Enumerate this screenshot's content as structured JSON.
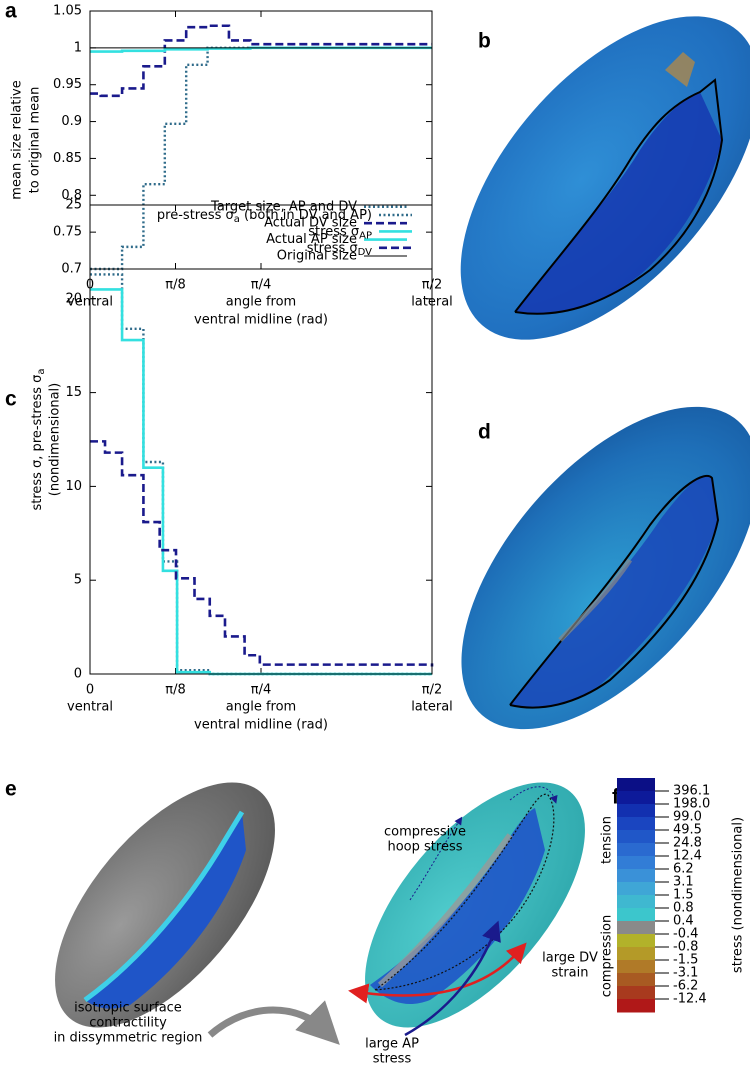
{
  "panel_labels": [
    "a",
    "b",
    "c",
    "d",
    "e",
    "f"
  ],
  "chart_data": [
    {
      "type": "line",
      "step": true,
      "legend": "lower right",
      "ylabel": [
        "mean size relative",
        "to original mean"
      ],
      "xlabel": [
        "angle from",
        "ventral midline (rad)"
      ],
      "x_end_labels": [
        "ventral",
        "lateral"
      ],
      "xlim": [
        0,
        1.5708
      ],
      "xticks": [
        0,
        {
          "value": 0.3927,
          "label": "π/8"
        },
        {
          "value": 0.7854,
          "label": "π/4"
        },
        {
          "value": 1.5708,
          "label": "π/2"
        }
      ],
      "ylim": [
        0.7,
        1.05
      ],
      "yticks": [
        0.7,
        0.75,
        0.8,
        0.85,
        0.9,
        0.95,
        1,
        1.05
      ],
      "series": [
        {
          "name": "Target size, AP and DV",
          "color": "#2f6b8a",
          "dash": "dotted",
          "x": [
            0,
            0.1473,
            0.2454,
            0.3436,
            0.4418,
            0.54,
            1.5708
          ],
          "values": [
            0.7,
            0.73,
            0.815,
            0.897,
            0.977,
            1.0,
            1.0
          ]
        },
        {
          "name": "Actual DV size",
          "color": "#1a1a8c",
          "dash": "dashed",
          "x": [
            0,
            0.0491,
            0.1473,
            0.2454,
            0.3436,
            0.4418,
            0.54,
            0.6381,
            0.7363,
            1.5708
          ],
          "values": [
            0.938,
            0.935,
            0.945,
            0.975,
            1.01,
            1.028,
            1.03,
            1.01,
            1.005,
            1.005
          ]
        },
        {
          "name": "Actual AP size",
          "color": "#33e0e0",
          "dash": "solid",
          "x": [
            0,
            0.1473,
            0.3436,
            0.54,
            0.7363,
            1.5708
          ],
          "values": [
            0.995,
            0.996,
            0.998,
            0.999,
            1.0,
            1.0
          ]
        },
        {
          "name": "Original size",
          "color": "#000000",
          "dash": "thin",
          "x": [
            0,
            1.5708
          ],
          "values": [
            1,
            1
          ]
        }
      ]
    },
    {
      "type": "line",
      "step": true,
      "legend": "upper right",
      "ylabel": [
        "stress σ, pre-stress σa",
        "(nondimensional)"
      ],
      "xlabel": [
        "angle from",
        "ventral midline (rad)"
      ],
      "x_end_labels": [
        "ventral",
        "lateral"
      ],
      "xlim": [
        0,
        1.5708
      ],
      "xticks": [
        0,
        {
          "value": 0.3927,
          "label": "π/8"
        },
        {
          "value": 0.7854,
          "label": "π/4"
        },
        {
          "value": 1.5708,
          "label": "π/2"
        }
      ],
      "ylim": [
        0,
        25
      ],
      "yticks": [
        0,
        5,
        10,
        15,
        20,
        25
      ],
      "series": [
        {
          "name": "pre-stress σa (both in DV and AP)",
          "color": "#2f6b8a",
          "dash": "dotted",
          "x": [
            0,
            0.1473,
            0.2454,
            0.335,
            0.4,
            0.55,
            1.5708
          ],
          "values": [
            21.3,
            18.4,
            11.3,
            6.0,
            0.2,
            0,
            0
          ]
        },
        {
          "name": "stress σAP",
          "color": "#33e0e0",
          "dash": "solid",
          "x": [
            0,
            0.1473,
            0.2454,
            0.335,
            0.4,
            0.55,
            1.5708
          ],
          "values": [
            20.5,
            17.8,
            11.0,
            5.5,
            0.1,
            0,
            0
          ]
        },
        {
          "name": "stress σDV",
          "color": "#1a1a8c",
          "dash": "dashed",
          "x": [
            0,
            0.069,
            0.1473,
            0.2454,
            0.32,
            0.395,
            0.48,
            0.55,
            0.62,
            0.71,
            0.78,
            1.5708
          ],
          "values": [
            12.4,
            11.8,
            10.6,
            8.1,
            6.6,
            5.1,
            4.0,
            3.1,
            2.0,
            1.0,
            0.5,
            0.4
          ]
        }
      ]
    },
    {
      "type": "colorbar",
      "ylabel": "stress (nondimensional)",
      "groups": [
        "tension",
        "compression"
      ],
      "colors": [
        "#0b0f86",
        "#0d1a9a",
        "#1230b0",
        "#1a45c0",
        "#2057c8",
        "#2a6ad0",
        "#327dd6",
        "#3a91d8",
        "#3fa6d6",
        "#3fb8d0",
        "#3cc6cc",
        "#8a8a8a",
        "#b2b22a",
        "#b49a28",
        "#b07a28",
        "#a85a22",
        "#a83a1e",
        "#b01818"
      ],
      "ticks": [
        396.1,
        {
          "value": 198,
          "label": "198.0"
        },
        {
          "value": 99,
          "label": "99.0"
        },
        49.5,
        24.8,
        12.4,
        6.2,
        3.1,
        1.5,
        0.8,
        0.4,
        -0.4,
        -0.8,
        -1.5,
        -3.1,
        -6.2,
        -12.4
      ]
    }
  ],
  "figure_e": {
    "left_note": [
      "isotropic surface",
      "contractility",
      "in dissymmetric region"
    ],
    "hoop": [
      "compressive",
      "hoop stress"
    ],
    "dv": [
      "large DV",
      "strain"
    ],
    "ap": [
      "large AP",
      "stress"
    ]
  }
}
